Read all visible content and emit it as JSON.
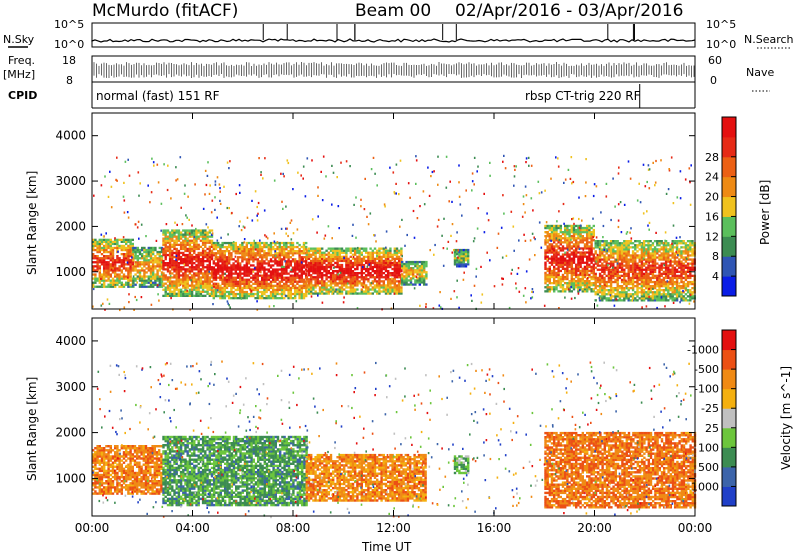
{
  "header": {
    "station": "McMurdo (fitACF)",
    "beam": "Beam 00",
    "dates": "02/Apr/2016 - 03/Apr/2016"
  },
  "side_labels": {
    "nsky": "N.Sky",
    "freq_top": "Freq.",
    "freq_unit": "[MHz]",
    "cpid": "CPID",
    "nsearch": "N.Search",
    "nave": "Nave",
    "nsky_ticks": [
      "10^5",
      "10^0"
    ],
    "nsearch_ticks": [
      "10^5",
      "10^0"
    ],
    "freq_ticks": [
      "18",
      "8"
    ],
    "nave_ticks": [
      "60",
      "0"
    ]
  },
  "modes": [
    {
      "label": "normal (fast) 151 RF",
      "start_hour": 0,
      "end_hour": 21.8
    },
    {
      "label": "rbsp CT-trig 220 RF",
      "start_hour": 21.8,
      "end_hour": 24
    }
  ],
  "chart_data": [
    {
      "type": "heatmap",
      "name": "power",
      "ylabel": "Slant Range [km]",
      "xlim": [
        0,
        24
      ],
      "ylim": [
        180,
        4500
      ],
      "ytick_labels": [
        "1000",
        "2000",
        "3000",
        "4000"
      ],
      "colorbar_label": "Power [dB]",
      "colorbar_ticks": [
        "4",
        "8",
        "12",
        "16",
        "20",
        "24",
        "28"
      ],
      "colorbar_colors": [
        "#0a1de6",
        "#2f55b4",
        "#3c8c52",
        "#5bbf5c",
        "#f0c21e",
        "#ee8a14",
        "#ec6014",
        "#e62a16",
        "#e41010"
      ],
      "scatter_band": [
        {
          "t0": 0.0,
          "t1": 1.6,
          "r0": 650,
          "r1": 1700,
          "level": 0.8
        },
        {
          "t0": 1.6,
          "t1": 2.8,
          "r0": 650,
          "r1": 1550,
          "level": 0.55
        },
        {
          "t0": 2.8,
          "t1": 4.8,
          "r0": 450,
          "r1": 1900,
          "level": 0.85
        },
        {
          "t0": 4.8,
          "t1": 8.5,
          "r0": 400,
          "r1": 1650,
          "level": 0.9
        },
        {
          "t0": 8.5,
          "t1": 12.3,
          "r0": 500,
          "r1": 1500,
          "level": 0.9
        },
        {
          "t0": 12.3,
          "t1": 13.3,
          "r0": 700,
          "r1": 1200,
          "level": 0.5
        },
        {
          "t0": 14.4,
          "t1": 15.0,
          "r0": 1100,
          "r1": 1500,
          "level": 0.35
        },
        {
          "t0": 18.0,
          "t1": 20.0,
          "r0": 550,
          "r1": 2000,
          "level": 0.85
        },
        {
          "t0": 20.0,
          "t1": 24.0,
          "r0": 350,
          "r1": 1700,
          "level": 0.75
        }
      ]
    },
    {
      "type": "heatmap",
      "name": "velocity",
      "ylabel": "Slant Range [km]",
      "xlabel": "Time UT",
      "xlim": [
        0,
        24
      ],
      "ylim": [
        180,
        4500
      ],
      "xtick_labels": [
        "00:00",
        "04:00",
        "08:00",
        "12:00",
        "16:00",
        "20:00",
        "00:00"
      ],
      "ytick_labels": [
        "1000",
        "2000",
        "3000",
        "4000"
      ],
      "colorbar_label": "Velocity [m s^-1]",
      "colorbar_ticks": [
        "1000",
        "500",
        "100",
        "25",
        "-25",
        "-100",
        "-500",
        "-1000"
      ],
      "colorbar_colors": [
        "#2040c8",
        "#3c64aa",
        "#3c8c52",
        "#6cc63c",
        "#c0c0c0",
        "#f4b010",
        "#f08a14",
        "#ec5014",
        "#e41010"
      ],
      "scatter_band": [
        {
          "t0": 0.0,
          "t1": 2.8,
          "r0": 650,
          "r1": 1700,
          "level": -0.55
        },
        {
          "t0": 2.8,
          "t1": 8.5,
          "r0": 400,
          "r1": 1900,
          "level": 0.45
        },
        {
          "t0": 8.5,
          "t1": 13.3,
          "r0": 500,
          "r1": 1500,
          "level": -0.5
        },
        {
          "t0": 14.4,
          "t1": 15.0,
          "r0": 1100,
          "r1": 1500,
          "level": 0.3
        },
        {
          "t0": 18.0,
          "t1": 24.0,
          "r0": 350,
          "r1": 2000,
          "level": -0.6
        }
      ]
    }
  ]
}
